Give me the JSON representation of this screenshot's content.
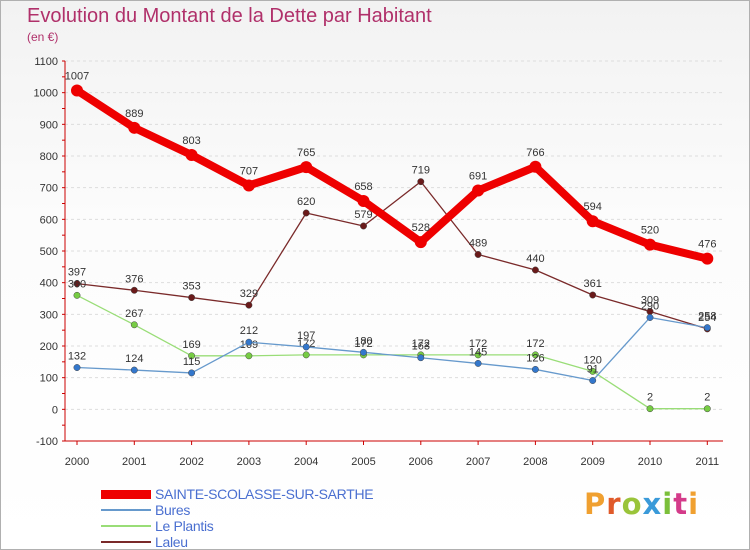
{
  "header": {
    "title": "Evolution du Montant de la Dette par Habitant",
    "subtitle": "(en €)"
  },
  "brand": {
    "text": "Proxiti",
    "colors": [
      "#f0a030",
      "#e05a2a",
      "#9ac43a",
      "#3a9ad9",
      "#7bbf3a",
      "#d43b8a",
      "#f0a030"
    ]
  },
  "chart_data": {
    "type": "line",
    "title": "Evolution du Montant de la Dette par Habitant",
    "subtitle": "(en €)",
    "xlabel": "",
    "ylabel": "",
    "ylim": [
      -100,
      1100
    ],
    "y_ticks": [
      -100,
      0,
      100,
      200,
      300,
      400,
      500,
      600,
      700,
      800,
      900,
      1000,
      1100
    ],
    "x": [
      "2000",
      "2001",
      "2002",
      "2003",
      "2004",
      "2005",
      "2006",
      "2007",
      "2008",
      "2009",
      "2010",
      "2011"
    ],
    "legend_position": "bottom-left",
    "series": [
      {
        "name": "Laleu",
        "color": "#7a2a2a",
        "marker": "#6a1a1a",
        "width": 1.3,
        "values": [
          397,
          376,
          353,
          329,
          620,
          579,
          719,
          489,
          440,
          361,
          309,
          254
        ]
      },
      {
        "name": "Le Plantis",
        "color": "#99dd77",
        "marker": "#77cc44",
        "width": 1.3,
        "values": [
          360,
          267,
          169,
          169,
          172,
          172,
          172,
          172,
          172,
          120,
          2,
          2
        ]
      },
      {
        "name": "Bures",
        "color": "#6699cc",
        "marker": "#3377cc",
        "width": 1.3,
        "values": [
          132,
          124,
          115,
          212,
          197,
          180,
          163,
          145,
          126,
          91,
          290,
          258
        ]
      },
      {
        "name": "SAINTE-SCOLASSE-SUR-SARTHE",
        "color": "#ee0000",
        "marker": "#ee0000",
        "width": 8,
        "values": [
          1007,
          889,
          803,
          707,
          765,
          658,
          528,
          691,
          766,
          594,
          520,
          476
        ]
      }
    ],
    "legend_order": [
      "SAINTE-SCOLASSE-SUR-SARTHE",
      "Bures",
      "Le Plantis",
      "Laleu"
    ]
  }
}
